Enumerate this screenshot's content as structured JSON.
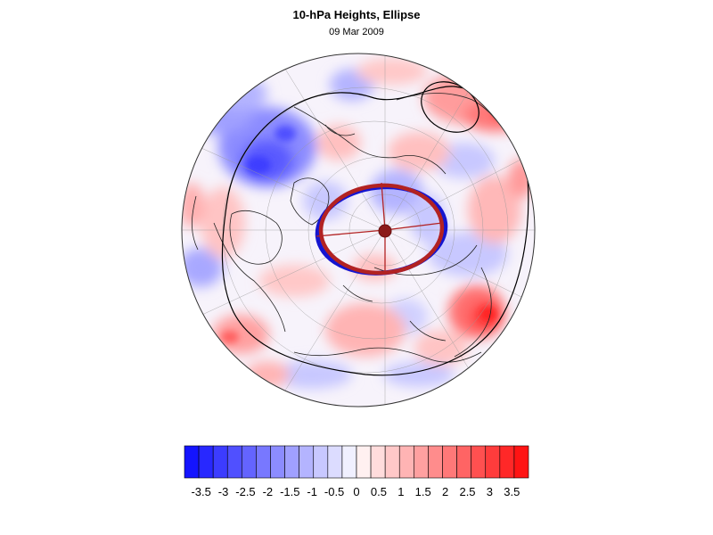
{
  "header": {
    "title": "10-hPa Heights, Ellipse",
    "subtitle": "09 Mar 2009"
  },
  "map": {
    "projection": "orthographic, north-polar view",
    "field": "10-hPa height anomaly (shaded)",
    "overlays": [
      "black contour",
      "blue ellipse",
      "red ellipse",
      "red center marker",
      "red axis lines"
    ]
  },
  "colorbar": {
    "colors": [
      "#1414ff",
      "#2828ff",
      "#3c3cff",
      "#5050ff",
      "#6464ff",
      "#7878ff",
      "#8c8cff",
      "#a0a0ff",
      "#b4b4ff",
      "#c8c8ff",
      "#dcdcff",
      "#f0f0ff",
      "#fff0f0",
      "#ffdcdc",
      "#ffc8c8",
      "#ffb4b4",
      "#ffa0a0",
      "#ff8c8c",
      "#ff7878",
      "#ff6464",
      "#ff5050",
      "#ff3c3c",
      "#ff2828",
      "#ff1414"
    ],
    "tick_labels": [
      "-3.5",
      "-3",
      "-2.5",
      "-2",
      "-1.5",
      "-1",
      "-0.5",
      "0",
      "0.5",
      "1",
      "1.5",
      "2",
      "2.5",
      "3",
      "3.5"
    ]
  },
  "colors": {
    "ellipse_red": "#b22222",
    "ellipse_blue": "#1515d0",
    "center_marker": "#8b1a1a"
  }
}
